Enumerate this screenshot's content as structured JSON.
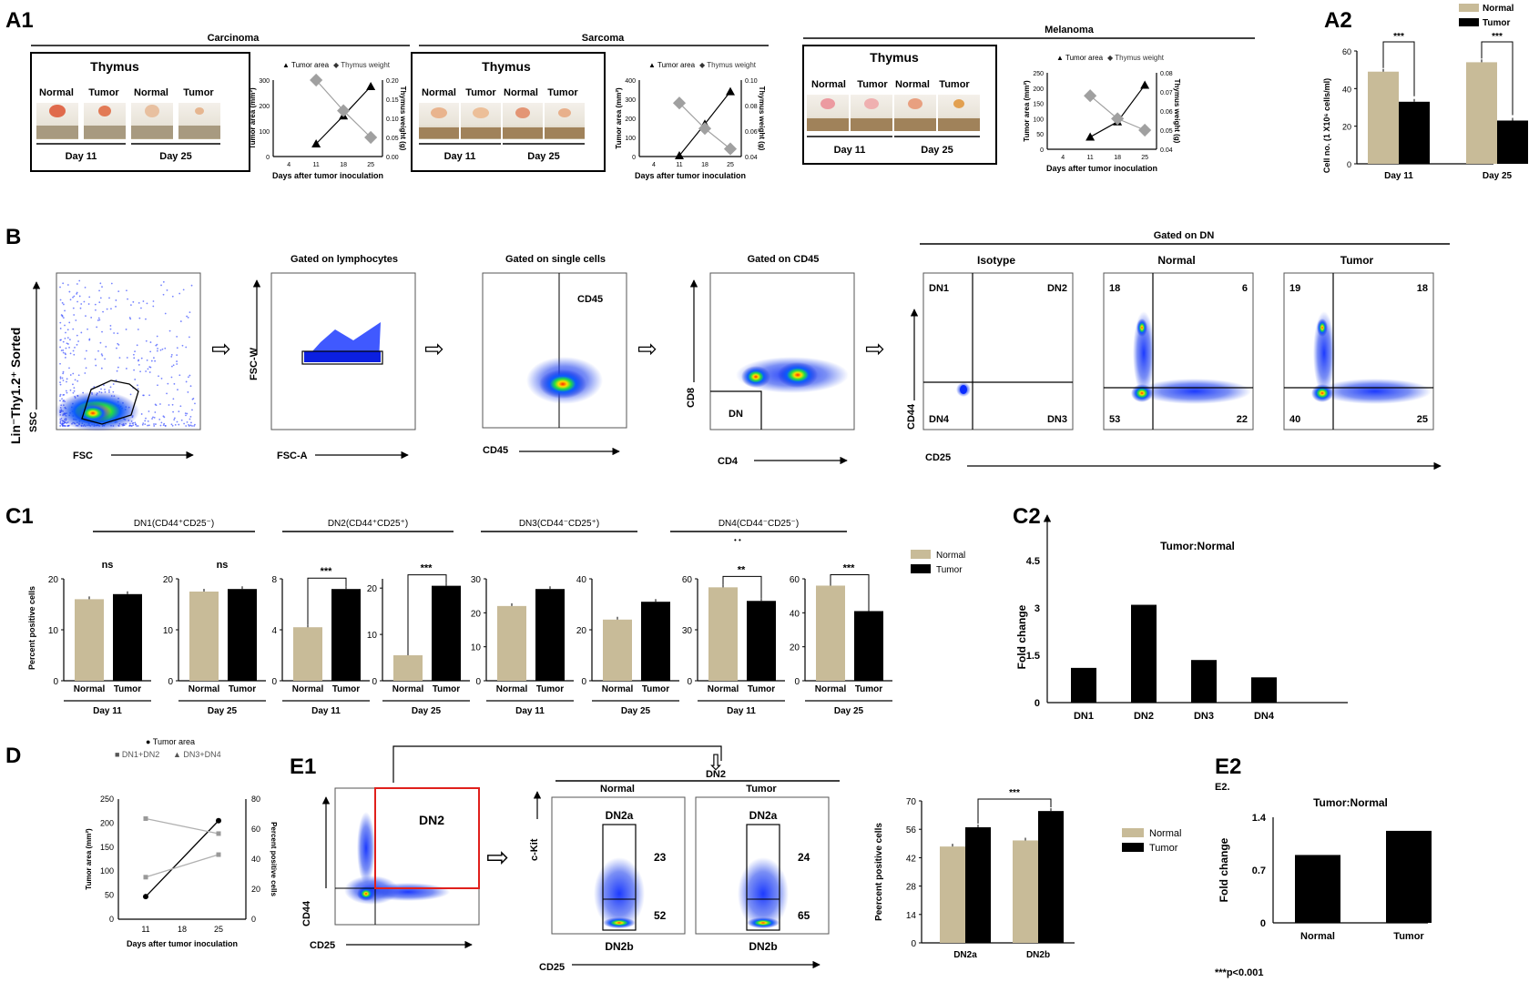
{
  "panels": {
    "a1": "A1",
    "a2": "A2",
    "b": "B",
    "c1": "C1",
    "c2": "C2",
    "d": "D",
    "e1": "E1",
    "e2": "E2"
  },
  "a1": {
    "groups": [
      {
        "title": "Carcinoma",
        "thymus": "Thymus",
        "photo_labels": [
          "Normal",
          "Tumor",
          "Normal",
          "Tumor"
        ],
        "days": [
          "Day 11",
          "Day 25"
        ],
        "chart_data": {
          "type": "line",
          "x": [
            11,
            18,
            25
          ],
          "series": [
            {
              "name": "Tumor area",
              "axis": "left",
              "values": [
                50,
                160,
                275
              ]
            },
            {
              "name": "Thymus weight",
              "axis": "right",
              "values": [
                0.2,
                0.12,
                0.05
              ]
            }
          ],
          "xticks": [
            "4",
            "11",
            "18",
            "25"
          ],
          "xlabel": "Days after tumor inoculation",
          "ylabel": "Tumor area (mm²)",
          "y2label": "Thymus weight (g)",
          "yticks": [
            "0",
            "100",
            "200",
            "300"
          ],
          "y2ticks": [
            "0.00",
            "0.05",
            "0.10",
            "0.15",
            "0.20"
          ],
          "ylim": [
            0,
            300
          ],
          "y2lim": [
            0,
            0.2
          ]
        }
      },
      {
        "title": "Sarcoma",
        "thymus": "Thymus",
        "photo_labels": [
          "Normal",
          "Tumor",
          "Normal",
          "Tumor"
        ],
        "days": [
          "Day 11",
          "Day 25"
        ],
        "chart_data": {
          "type": "line",
          "x": [
            11,
            18,
            25
          ],
          "series": [
            {
              "name": "Tumor area",
              "axis": "left",
              "values": [
                5,
                170,
                340
              ]
            },
            {
              "name": "Thymus weight",
              "axis": "right",
              "values": [
                0.082,
                0.062,
                0.046
              ]
            }
          ],
          "xticks": [
            "4",
            "11",
            "18",
            "25"
          ],
          "xlabel": "Days after tumor inoculation",
          "ylabel": "Tumor area (mm²)",
          "y2label": "Thymus weight (g)",
          "yticks": [
            "0",
            "100",
            "200",
            "300",
            "400"
          ],
          "y2ticks": [
            "0.04",
            "0.06",
            "0.08",
            "0.10"
          ],
          "ylim": [
            0,
            400
          ],
          "y2lim": [
            0.04,
            0.1
          ]
        }
      },
      {
        "title": "Melanoma",
        "thymus": "Thymus",
        "photo_labels": [
          "Normal",
          "Tumor",
          "Normal",
          "Tumor"
        ],
        "days": [
          "Day 11",
          "Day 25"
        ],
        "chart_data": {
          "type": "line",
          "x": [
            11,
            18,
            25
          ],
          "series": [
            {
              "name": "Tumor area",
              "axis": "left",
              "values": [
                40,
                90,
                210
              ]
            },
            {
              "name": "Thymus weight",
              "axis": "right",
              "values": [
                0.068,
                0.056,
                0.05
              ]
            }
          ],
          "xticks": [
            "4",
            "11",
            "18",
            "25"
          ],
          "xlabel": "Days after tumor inoculation",
          "ylabel": "Tumor area (mm²)",
          "y2label": "Thymus weight (g)",
          "yticks": [
            "0",
            "50",
            "100",
            "150",
            "200",
            "250"
          ],
          "y2ticks": [
            "0.04",
            "0.05",
            "0.06",
            "0.07",
            "0.08"
          ],
          "ylim": [
            0,
            250
          ],
          "y2lim": [
            0.04,
            0.08
          ]
        }
      }
    ],
    "legend": [
      "Tumor area",
      "Thymus weight"
    ]
  },
  "a2": {
    "legend": [
      "Normal",
      "Tumor"
    ],
    "sig": [
      "***",
      "***"
    ],
    "chart_data": {
      "type": "bar",
      "categories": [
        "Day 11",
        "Day 25"
      ],
      "series": [
        {
          "name": "Normal",
          "values": [
            49,
            54
          ]
        },
        {
          "name": "Tumor",
          "values": [
            33,
            23
          ]
        }
      ],
      "ylabel": "Cell no. (1 X10⁶ cells/ml)",
      "yticks": [
        "0",
        "20",
        "40",
        "60"
      ],
      "ylim": [
        0,
        60
      ]
    }
  },
  "b": {
    "plots": [
      {
        "title": "",
        "xlabel": "FSC",
        "ylabel": "SSC",
        "side": "Lin⁻Thy1.2⁺ Sorted"
      },
      {
        "title": "Gated on lymphocytes",
        "xlabel": "FSC-A",
        "ylabel": "FSC-W"
      },
      {
        "title": "Gated on single cells",
        "xlabel": "CD45",
        "ylabel": "",
        "gate": "CD45"
      },
      {
        "title": "Gated on CD45",
        "xlabel": "CD4",
        "ylabel": "CD8",
        "gate": "DN"
      }
    ],
    "dn_header": "Gated on DN",
    "quads": [
      {
        "title": "Isotype",
        "tl": "DN1",
        "tr": "DN2",
        "bl": "DN4",
        "br": "DN3"
      },
      {
        "title": "Normal",
        "tl": "18",
        "tr": "6",
        "bl": "53",
        "br": "22"
      },
      {
        "title": "Tumor",
        "tl": "19",
        "tr": "18",
        "bl": "40",
        "br": "25"
      }
    ],
    "quad_xlabel": "CD25",
    "quad_ylabel": "CD44"
  },
  "c1": {
    "headers": [
      "DN1(CD44⁺CD25⁻)",
      "DN2(CD44⁺CD25⁺)",
      "DN3(CD44⁻CD25⁺)",
      "DN4(CD44⁻CD25⁻)"
    ],
    "ylabel": "Percent positive cells",
    "legend": [
      "Normal",
      "Tumor"
    ],
    "dot_mark": "• •",
    "charts": [
      {
        "day": "Day 11",
        "sig": "ns",
        "cats": [
          "Normal",
          "Tumor"
        ],
        "values": [
          16,
          17
        ],
        "ylim": [
          0,
          20
        ],
        "yticks": [
          "0",
          "10",
          "20"
        ]
      },
      {
        "day": "Day 25",
        "sig": "ns",
        "cats": [
          "Normal",
          "Tumor"
        ],
        "values": [
          17.5,
          18
        ],
        "ylim": [
          0,
          20
        ],
        "yticks": [
          "0",
          "10",
          "20"
        ]
      },
      {
        "day": "Day 11",
        "sig": "***",
        "cats": [
          "Normal",
          "Tumor"
        ],
        "values": [
          4.2,
          7.2
        ],
        "ylim": [
          0,
          8
        ],
        "yticks": [
          "0",
          "4",
          "8"
        ]
      },
      {
        "day": "Day 25",
        "sig": "***",
        "cats": [
          "Normal",
          "Tumor"
        ],
        "values": [
          5.5,
          20.5
        ],
        "ylim": [
          0,
          22
        ],
        "yticks": [
          "0",
          "10",
          "20"
        ]
      },
      {
        "day": "Day 11",
        "sig": "",
        "cats": [
          "Normal",
          "Tumor"
        ],
        "values": [
          22,
          27
        ],
        "ylim": [
          0,
          30
        ],
        "yticks": [
          "0",
          "10",
          "20",
          "30"
        ]
      },
      {
        "day": "Day 25",
        "sig": "",
        "cats": [
          "Normal",
          "Tumor"
        ],
        "values": [
          24,
          31
        ],
        "ylim": [
          0,
          40
        ],
        "yticks": [
          "0",
          "20",
          "40"
        ]
      },
      {
        "day": "Day 11",
        "sig": "**",
        "cats": [
          "Normal",
          "Tumor"
        ],
        "values": [
          55,
          47
        ],
        "ylim": [
          0,
          60
        ],
        "yticks": [
          "0",
          "30",
          "60"
        ]
      },
      {
        "day": "Day 25",
        "sig": "***",
        "cats": [
          "Normal",
          "Tumor"
        ],
        "values": [
          56,
          41
        ],
        "ylim": [
          0,
          60
        ],
        "yticks": [
          "0",
          "20",
          "40",
          "60"
        ]
      }
    ]
  },
  "c2": {
    "chart_data": {
      "type": "bar",
      "title": "Tumor:Normal",
      "categories": [
        "DN1",
        "DN2",
        "DN3",
        "DN4"
      ],
      "values": [
        1.1,
        3.1,
        1.35,
        0.8
      ],
      "ylabel": "Fold change",
      "yticks": [
        "0",
        "1.5",
        "3",
        "4.5"
      ],
      "ylim": [
        0,
        4.5
      ]
    }
  },
  "d": {
    "legend": [
      "Tumor area",
      "DN1+DN2",
      "DN3+DN4"
    ],
    "chart_data": {
      "type": "line",
      "x": [
        11,
        25
      ],
      "xticks": [
        "11",
        "18",
        "25"
      ],
      "series": [
        {
          "name": "Tumor area",
          "axis": "left",
          "values": [
            47,
            205
          ]
        },
        {
          "name": "DN1+DN2",
          "axis": "right",
          "values": [
            28,
            43
          ]
        },
        {
          "name": "DN3+DN4",
          "axis": "right",
          "values": [
            67,
            57
          ]
        }
      ],
      "xlabel": "Days after tumor inoculation",
      "ylabel": "Tumor area (mm²)",
      "y2label": "Percent positive cells",
      "yticks": [
        "0",
        "50",
        "100",
        "150",
        "200",
        "250"
      ],
      "y2ticks": [
        "0",
        "20",
        "40",
        "60",
        "80"
      ],
      "ylim": [
        0,
        250
      ],
      "y2lim": [
        0,
        80
      ]
    }
  },
  "e1": {
    "gate": "DN2",
    "xlabel": "CD25",
    "ylabel": "CD44",
    "dn2_header": "DN2",
    "sub": [
      {
        "title": "Normal",
        "a": "DN2a",
        "b": "DN2b",
        "va": "23",
        "vb": "52"
      },
      {
        "title": "Tumor",
        "a": "DN2a",
        "b": "DN2b",
        "va": "24",
        "vb": "65"
      }
    ],
    "sub_xlabel": "CD25",
    "sub_ylabel": "c-Kit",
    "bar": {
      "legend": [
        "Normal",
        "Tumor"
      ],
      "sig": "***",
      "chart_data": {
        "type": "bar",
        "categories": [
          "DN2a",
          "DN2b"
        ],
        "series": [
          {
            "name": "Normal",
            "values": [
              47.5,
              50.5
            ]
          },
          {
            "name": "Tumor",
            "values": [
              57,
              65
            ]
          }
        ],
        "ylabel": "Peercent positive cells",
        "yticks": [
          "0",
          "14",
          "28",
          "42",
          "56",
          "70"
        ],
        "ylim": [
          0,
          70
        ]
      }
    }
  },
  "e2": {
    "small_title": "E2.",
    "chart_data": {
      "type": "bar",
      "title": "Tumor:Normal",
      "categories": [
        "Normal",
        "Tumor"
      ],
      "values": [
        0.9,
        1.22
      ],
      "ylabel": "Fold change",
      "yticks": [
        "0",
        "0.7",
        "1.4"
      ],
      "ylim": [
        0,
        1.4
      ]
    },
    "footnote": "***p<0.001"
  },
  "colors": {
    "normal": "#c8bb98",
    "tumor": "#000000",
    "gray": "#a0a0a0",
    "gate_red": "#e0201c"
  }
}
